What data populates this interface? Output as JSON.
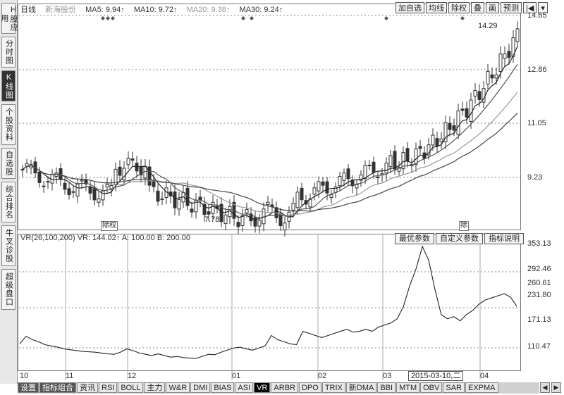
{
  "sidebar": {
    "items": [
      {
        "label": "H股应用",
        "active": false
      },
      {
        "label": "分时图",
        "active": false
      },
      {
        "label": "K线图",
        "active": true
      },
      {
        "label": "个股资料",
        "active": false
      },
      {
        "label": "自选股",
        "active": false
      },
      {
        "label": "综合排名",
        "active": false
      },
      {
        "label": "牛叉诊股",
        "active": false
      },
      {
        "label": "超级盘口",
        "active": false
      }
    ]
  },
  "main_chart": {
    "period_label": "日线",
    "stock_name": "新海股份",
    "ma": [
      {
        "label": "MA5: 9.94↑"
      },
      {
        "label": "MA10: 9.72↑"
      },
      {
        "label": "MA20: 9.38↑"
      },
      {
        "label": "MA30: 9.24↑"
      }
    ],
    "toolbar": [
      "加自选",
      "均线",
      "除权",
      "叠",
      "画",
      "预测"
    ],
    "high_label": "14.29",
    "low_label": "7.78",
    "tag_left": "除权",
    "tag_right": "除"
  },
  "y_axis_main": [
    "14.65",
    "12.86",
    "11.05",
    "9.23"
  ],
  "vr_panel": {
    "legend": "VR(26,100,200) VR: 144.02↑ A: 100.00 B: 200.00",
    "buttons": [
      "最优参数",
      "自定义参数",
      "指标说明"
    ]
  },
  "y_axis_vr": [
    "353.13",
    "292.46",
    "260.61",
    "231.80",
    "171.13",
    "110.47"
  ],
  "x_axis": [
    "10",
    "11",
    "12",
    "01",
    "02",
    "03",
    "04"
  ],
  "crosshair_date": "2015-03-10,二",
  "bottom_tabs": [
    "设置",
    "指标组合",
    "资讯",
    "RSI",
    "BOLL",
    "主力",
    "W&R",
    "DMI",
    "BIAS",
    "ASI",
    "VR",
    "ARBR",
    "DPO",
    "TRIX",
    "新DMA",
    "BBI",
    "MTM",
    "OBV",
    "SAR",
    "EXPMA"
  ],
  "chart_data": {
    "type": "line",
    "vr_values": [
      120,
      138,
      130,
      125,
      118,
      115,
      112,
      108,
      106,
      104,
      102,
      101,
      100,
      98,
      96,
      95,
      100,
      108,
      104,
      98,
      95,
      92,
      96,
      92,
      88,
      90,
      87,
      86,
      85,
      90,
      95,
      94,
      100,
      105,
      110,
      112,
      108,
      105,
      110,
      115,
      140,
      130,
      125,
      120,
      118,
      150,
      145,
      140,
      135,
      140,
      145,
      150,
      155,
      148,
      150,
      155,
      150,
      160,
      165,
      170,
      180,
      210,
      260,
      300,
      353,
      320,
      250,
      190,
      180,
      185,
      175,
      190,
      200,
      215,
      225,
      230,
      235,
      240,
      232,
      210
    ]
  }
}
